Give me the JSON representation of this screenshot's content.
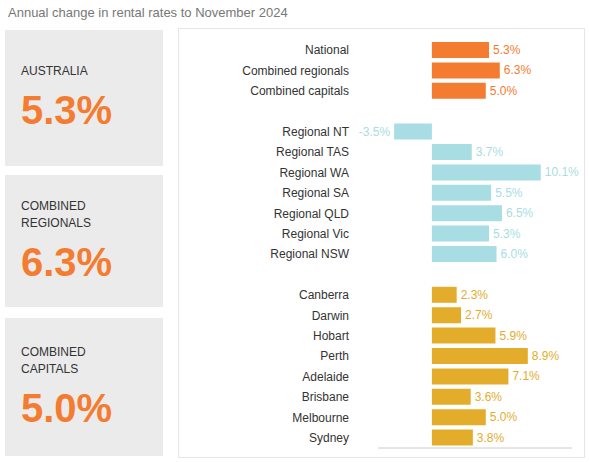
{
  "chart_data": {
    "type": "bar",
    "title": "Annual change in rental rates to November 2024",
    "orientation": "horizontal",
    "data_labels": true,
    "tick_labels": "y",
    "grid": false,
    "categories": [
      "National",
      "Combined regionals",
      "Combined capitals",
      null,
      "Regional NT",
      "Regional TAS",
      "Regional WA",
      "Regional SA",
      "Regional QLD",
      "Regional Vic",
      "Regional NSW",
      null,
      "Canberra",
      "Darwin",
      "Hobart",
      "Perth",
      "Adelaide",
      "Brisbane",
      "Melbourne",
      "Sydney"
    ],
    "values": [
      5.3,
      6.3,
      5.0,
      null,
      -3.5,
      3.7,
      10.1,
      5.5,
      6.5,
      5.3,
      6.0,
      null,
      2.3,
      2.7,
      5.9,
      8.9,
      7.1,
      3.6,
      5.0,
      3.8
    ],
    "value_labels": [
      "5.3%",
      "6.3%",
      "5.0%",
      null,
      "-3.5%",
      "3.7%",
      "10.1%",
      "5.5%",
      "6.5%",
      "5.3%",
      "6.0%",
      null,
      "2.3%",
      "2.7%",
      "5.9%",
      "8.9%",
      "7.1%",
      "3.6%",
      "5.0%",
      "3.8%"
    ],
    "colors": [
      "#f47c30",
      "#f47c30",
      "#f47c30",
      null,
      "#a8dde3",
      "#a8dde3",
      "#a8dde3",
      "#a8dde3",
      "#a8dde3",
      "#a8dde3",
      "#a8dde3",
      null,
      "#e3ad2b",
      "#e3ad2b",
      "#e3ad2b",
      "#e3ad2b",
      "#e3ad2b",
      "#e3ad2b",
      "#e3ad2b",
      "#e3ad2b"
    ],
    "xlim": [
      -5,
      13
    ]
  },
  "panels": [
    {
      "title": "AUSTRALIA",
      "text": "5.3%"
    },
    {
      "title": "COMBINED REGIONALS",
      "text": "6.3%"
    },
    {
      "title": "COMBINED CAPITALS",
      "text": "5.0%"
    }
  ]
}
